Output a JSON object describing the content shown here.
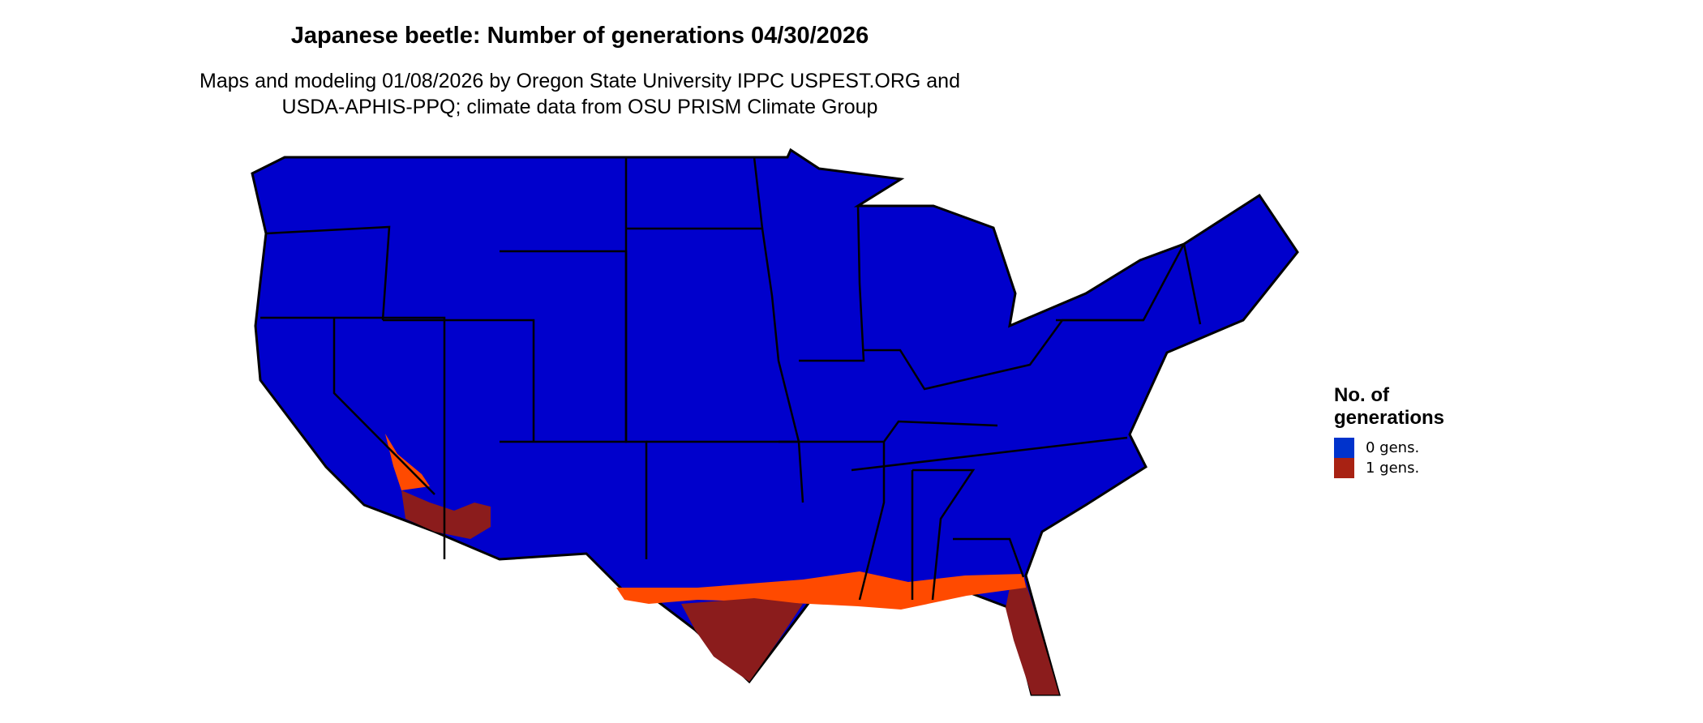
{
  "title": "Japanese beetle: Number of generations 04/30/2026",
  "subtitle_lines": [
    "Maps and modeling 01/08/2026 by Oregon State University IPPC USPEST.ORG and",
    "USDA-APHIS-PPQ; climate data from OSU PRISM Climate Group"
  ],
  "legend": {
    "title_lines": [
      "No. of",
      "generations"
    ],
    "items": [
      {
        "label": "0 gens.",
        "color": "#0033cc"
      },
      {
        "label": "1 gens.",
        "color": "#a82213"
      }
    ]
  },
  "colors": {
    "map_zero": "#0000cc",
    "map_one_dark": "#8b1c1c",
    "map_one_edge": "#ff4a00",
    "borders": "#000000"
  }
}
